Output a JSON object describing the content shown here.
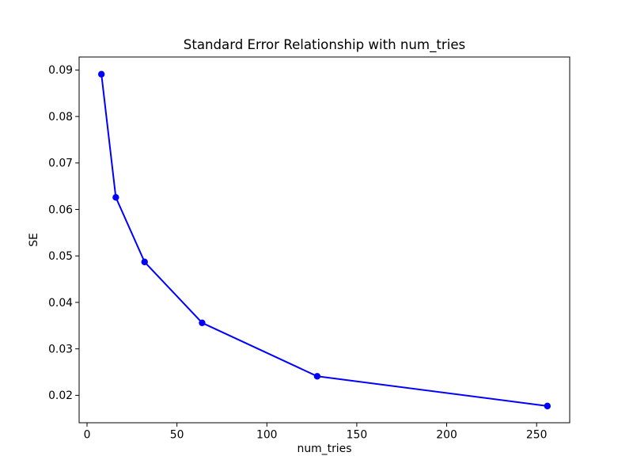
{
  "figure": {
    "background_color": "#ffffff"
  },
  "chart_data": {
    "type": "line",
    "title": "Standard Error Relationship with num_tries",
    "xlabel": "num_tries",
    "ylabel": "SE",
    "x": [
      8,
      16,
      32,
      64,
      128,
      256
    ],
    "y": [
      0.0891,
      0.0626,
      0.0487,
      0.0356,
      0.0241,
      0.0177
    ],
    "x_ticks": [
      0,
      50,
      100,
      150,
      200,
      250
    ],
    "y_ticks": [
      0.02,
      0.03,
      0.04,
      0.05,
      0.06,
      0.07,
      0.08,
      0.09
    ],
    "y_tick_decimals": 2,
    "xlim": [
      -4.4,
      268.4
    ],
    "ylim": [
      0.0141,
      0.0928
    ],
    "grid": false,
    "legend_position": "none",
    "line_color": "#0000ff",
    "marker": "circle",
    "marker_color": "#0000ff",
    "axis_color": "#000000",
    "text_color": "#000000"
  }
}
